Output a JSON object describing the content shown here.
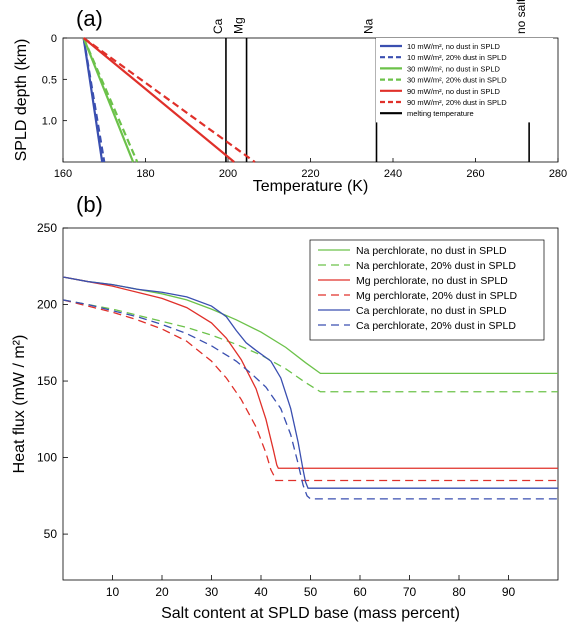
{
  "chart_data": [
    {
      "type": "line",
      "panel_label": "(a)",
      "xlabel": "Temperature (K)",
      "ylabel": "SPLD depth (km)",
      "xlim": [
        160,
        280
      ],
      "ylim": [
        0,
        1.5
      ],
      "y_inverted": true,
      "xticks": [
        160,
        180,
        200,
        220,
        240,
        260,
        280
      ],
      "yticks": [
        0,
        0.5,
        1
      ],
      "ytick_labels": [
        "0",
        "0.5",
        "1.0"
      ],
      "grid": false,
      "legend_position": "top-right",
      "colors": {
        "blue": "#3a4fb0",
        "green": "#6cc24a",
        "red": "#e0302a",
        "black": "#000000"
      },
      "vlines": [
        {
          "label": "Ca",
          "x": 199.5
        },
        {
          "label": "Mg",
          "x": 204.5
        },
        {
          "label": "Na",
          "x": 236
        },
        {
          "label": "no salts",
          "x": 273
        }
      ],
      "series": [
        {
          "name": "10 mW/m², no dust in SPLD",
          "color": "#3a4fb0",
          "dash": false,
          "x": [
            165,
            169.5
          ],
          "y": [
            0,
            1.5
          ]
        },
        {
          "name": "10 mW/m², 20% dust in SPLD",
          "color": "#3a4fb0",
          "dash": true,
          "x": [
            165,
            170
          ],
          "y": [
            0,
            1.5
          ]
        },
        {
          "name": "30 mW/m², no dust in SPLD",
          "color": "#6cc24a",
          "dash": false,
          "x": [
            165,
            177
          ],
          "y": [
            0,
            1.5
          ]
        },
        {
          "name": "30 mW/m², 20% dust in SPLD",
          "color": "#6cc24a",
          "dash": true,
          "x": [
            165,
            178
          ],
          "y": [
            0,
            1.5
          ]
        },
        {
          "name": "90 mW/m², no dust in SPLD",
          "color": "#e0302a",
          "dash": false,
          "x": [
            165,
            201.5
          ],
          "y": [
            0,
            1.5
          ]
        },
        {
          "name": "90 mW/m², 20% dust in SPLD",
          "color": "#e0302a",
          "dash": true,
          "x": [
            165,
            206.5
          ],
          "y": [
            0,
            1.5
          ]
        },
        {
          "name": "melting temperature",
          "color": "#000000",
          "dash": false,
          "legend_only": true
        }
      ]
    },
    {
      "type": "line",
      "panel_label": "(b)",
      "xlabel": "Salt content at SPLD base (mass percent)",
      "ylabel": "Heat flux (mW / m²)",
      "xlim": [
        0,
        100
      ],
      "ylim": [
        20,
        250
      ],
      "xticks": [
        10,
        20,
        30,
        40,
        50,
        60,
        70,
        80,
        90
      ],
      "yticks": [
        50,
        100,
        150,
        200,
        250
      ],
      "grid": false,
      "legend_position": "top-right",
      "series": [
        {
          "name": "Na perchlorate, no dust in SPLD",
          "color": "#6cc24a",
          "dash": false,
          "x": [
            0,
            5,
            10,
            15,
            20,
            25,
            30,
            35,
            40,
            45,
            49,
            52,
            60,
            70,
            80,
            90,
            100
          ],
          "y": [
            218,
            215,
            213,
            210,
            207,
            203,
            197,
            190,
            182,
            172,
            162,
            155,
            155,
            155,
            155,
            155,
            155
          ]
        },
        {
          "name": "Na perchlorate, 20% dust in SPLD",
          "color": "#6cc24a",
          "dash": true,
          "x": [
            0,
            5,
            10,
            15,
            20,
            25,
            30,
            35,
            40,
            45,
            49,
            52,
            60,
            70,
            80,
            90,
            100
          ],
          "y": [
            203,
            200,
            197,
            193,
            189,
            185,
            180,
            174,
            167,
            158,
            149,
            143,
            143,
            143,
            143,
            143,
            143
          ]
        },
        {
          "name": "Mg perchlorate, no dust in SPLD",
          "color": "#e0302a",
          "dash": false,
          "x": [
            0,
            5,
            10,
            15,
            20,
            25,
            30,
            33,
            36,
            39,
            41,
            42.5,
            43.2,
            43.5,
            50,
            60,
            70,
            80,
            90,
            100
          ],
          "y": [
            218,
            215,
            212,
            208,
            204,
            198,
            188,
            178,
            164,
            145,
            125,
            105,
            95,
            93,
            93,
            93,
            93,
            93,
            93,
            93
          ]
        },
        {
          "name": "Mg perchlorate, 20% dust in SPLD",
          "color": "#e0302a",
          "dash": true,
          "x": [
            0,
            5,
            10,
            15,
            20,
            25,
            30,
            33,
            36,
            39,
            41,
            42,
            42.8,
            43,
            50,
            60,
            70,
            80,
            90,
            100
          ],
          "y": [
            203,
            199,
            195,
            190,
            184,
            176,
            163,
            152,
            138,
            120,
            103,
            92,
            87,
            85,
            85,
            85,
            85,
            85,
            85,
            85
          ]
        },
        {
          "name": "Ca perchlorate, no dust in SPLD",
          "color": "#3a4fb0",
          "dash": false,
          "x": [
            0,
            5,
            10,
            15,
            20,
            25,
            30,
            33,
            35,
            37,
            39,
            42,
            44,
            46,
            47.5,
            48.5,
            49,
            49.5,
            50,
            60,
            70,
            80,
            90,
            100
          ],
          "y": [
            218,
            215,
            213,
            210,
            208,
            205,
            199,
            192,
            183,
            175,
            170,
            163,
            152,
            132,
            110,
            92,
            84,
            80,
            80,
            80,
            80,
            80,
            80,
            80
          ]
        },
        {
          "name": "Ca perchlorate, 20% dust in SPLD",
          "color": "#3a4fb0",
          "dash": true,
          "x": [
            0,
            5,
            10,
            15,
            20,
            25,
            30,
            35,
            38,
            41,
            44,
            46,
            47.5,
            48.5,
            49.3,
            50,
            60,
            70,
            80,
            90,
            100
          ],
          "y": [
            203,
            200,
            196,
            192,
            187,
            181,
            173,
            163,
            155,
            146,
            132,
            115,
            96,
            82,
            75,
            73,
            73,
            73,
            73,
            73,
            73
          ]
        }
      ]
    }
  ],
  "labels": {
    "panel_a": "(a)",
    "panel_b": "(b)"
  }
}
